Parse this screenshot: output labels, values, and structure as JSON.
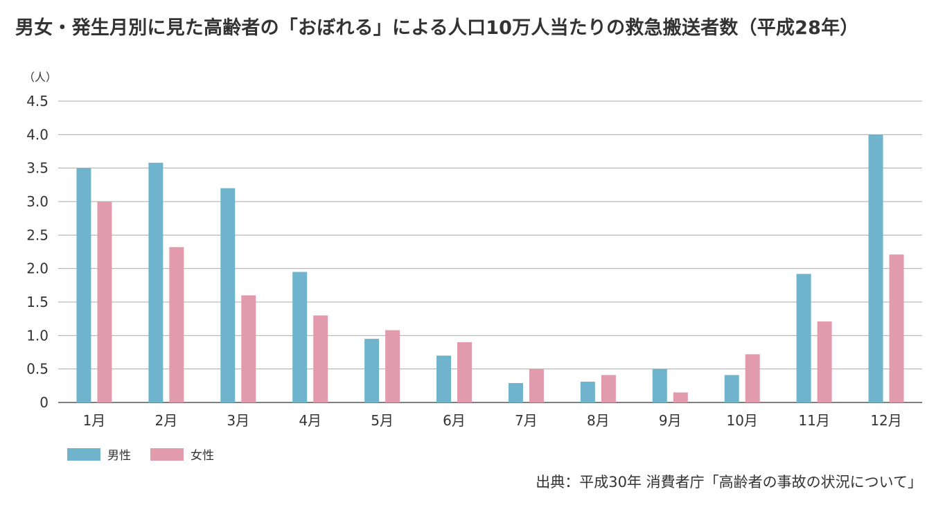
{
  "colors": {
    "male": "#6fb4cc",
    "female": "#e29aad",
    "grid": "#aaaaaa",
    "axis": "#555555",
    "text": "#333333"
  },
  "chart_data": {
    "type": "bar",
    "title": "男女・発生月別に見た高齢者の「おぼれる」による人口10万人当たりの救急搬送者数（平成28年）",
    "ylabel": "（人）",
    "xlabel": "",
    "ylim": [
      0,
      4.5
    ],
    "yticks": [
      "0",
      "0.5",
      "1.0",
      "1.5",
      "2.0",
      "2.5",
      "3.0",
      "3.5",
      "4.0",
      "4.5"
    ],
    "grid": true,
    "legend_position": "bottom-left",
    "categories": [
      "1月",
      "2月",
      "3月",
      "4月",
      "5月",
      "6月",
      "7月",
      "8月",
      "9月",
      "10月",
      "11月",
      "12月"
    ],
    "series": [
      {
        "name": "男性",
        "color": "#6fb4cc",
        "values": [
          3.5,
          3.58,
          3.2,
          1.95,
          0.95,
          0.7,
          0.29,
          0.31,
          0.5,
          0.41,
          1.92,
          4.0
        ]
      },
      {
        "name": "女性",
        "color": "#e29aad",
        "values": [
          3.0,
          2.32,
          1.6,
          1.3,
          1.08,
          0.9,
          0.5,
          0.41,
          0.15,
          0.72,
          1.21,
          2.21
        ]
      }
    ],
    "source": "出典：平成30年 消費者庁「高齢者の事故の状況について」"
  }
}
